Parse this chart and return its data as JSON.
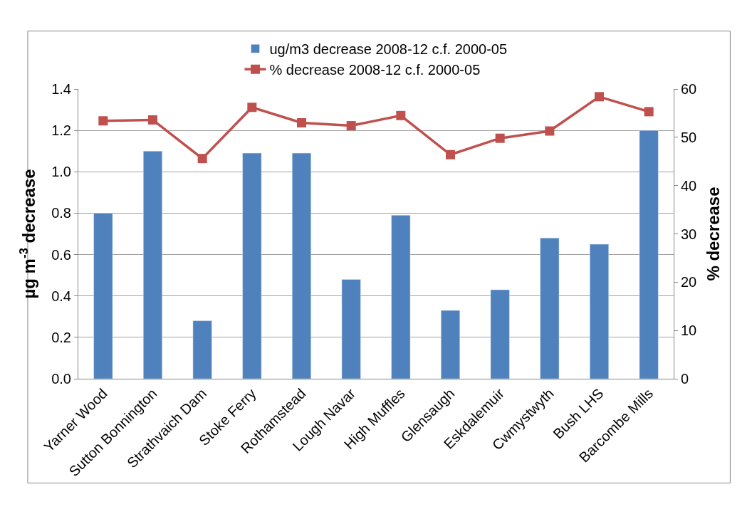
{
  "chart_data": {
    "type": "bar",
    "categories": [
      "Yarner Wood",
      "Sutton Bonnington",
      "Strathvaich Dam",
      "Stoke Ferry",
      "Rothamstead",
      "Lough Navar",
      "High Muffles",
      "Glensaugh",
      "Eskdalemuir",
      "Cwmystwyth",
      "Bush LHS",
      "Barcombe Mills"
    ],
    "series": [
      {
        "name": "ug/m3 decrease 2008-12 c.f. 2000-05",
        "color": "#4f81bd",
        "values": [
          0.8,
          1.1,
          0.28,
          1.09,
          1.09,
          0.48,
          0.79,
          0.33,
          0.43,
          0.68,
          0.65,
          1.2
        ]
      },
      {
        "name": "% decrease 2008-12 c.f. 2000-05",
        "type": "line",
        "axis": "y2",
        "color": "#c0504d",
        "marker": "square",
        "values": [
          53.4,
          53.6,
          45.6,
          56.2,
          53.0,
          52.4,
          54.5,
          46.4,
          49.8,
          51.3,
          58.4,
          55.3
        ]
      }
    ],
    "ylabel": "µg m$^{-3}$ decrease",
    "y2label": "% decrease",
    "ylim": [
      0,
      1.4
    ],
    "yticks": [
      {
        "value": 0,
        "label": "0.0"
      },
      0.2,
      0.4,
      0.6,
      0.8,
      {
        "value": 1,
        "label": "1.0"
      },
      1.2,
      1.4
    ],
    "y2lim": [
      0,
      60
    ],
    "y2ticks": [
      0,
      10,
      20,
      30,
      40,
      50,
      60
    ],
    "grid": "y",
    "legend": "top"
  }
}
